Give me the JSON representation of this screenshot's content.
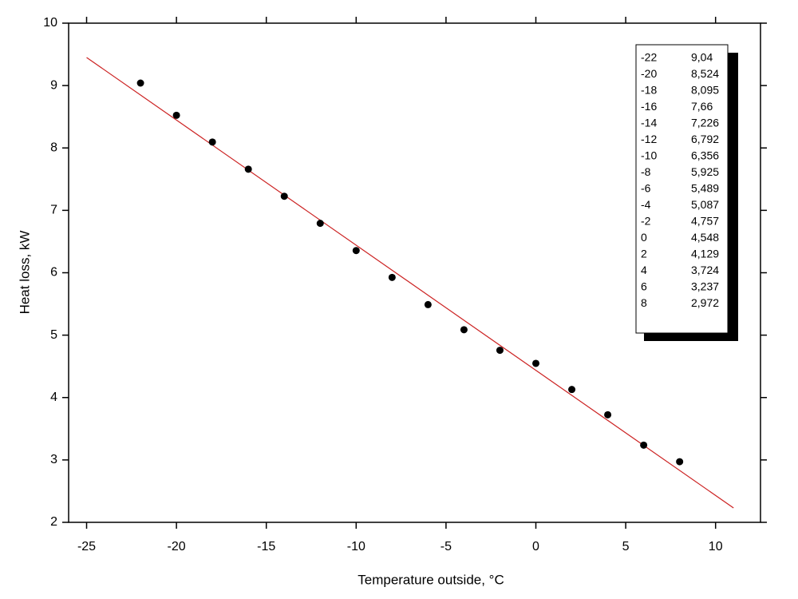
{
  "chart_data": {
    "type": "scatter",
    "xlabel": "Temperature outside, °C",
    "ylabel": "Heat loss, kW",
    "x": [
      -22,
      -20,
      -18,
      -16,
      -14,
      -12,
      -10,
      -8,
      -6,
      -4,
      -2,
      0,
      2,
      4,
      6,
      8
    ],
    "y": [
      9.04,
      8.524,
      8.095,
      7.66,
      7.226,
      6.792,
      6.356,
      5.925,
      5.489,
      5.087,
      4.757,
      4.548,
      4.129,
      3.724,
      3.237,
      2.972
    ],
    "value_labels": [
      "9,04",
      "8,524",
      "8,095",
      "7,66",
      "7,226",
      "6,792",
      "6,356",
      "5,925",
      "5,489",
      "5,087",
      "4,757",
      "4,548",
      "4,129",
      "3,724",
      "3,237",
      "2,972"
    ],
    "color": "#000000",
    "fit": {
      "x": [
        -25,
        11
      ],
      "y": [
        9.45,
        2.23
      ],
      "color": "#cc2222"
    },
    "xlim": [
      -26,
      12.5
    ],
    "ylim": [
      2,
      10
    ],
    "xticks": [
      -25,
      -20,
      -15,
      -10,
      -5,
      0,
      5,
      10
    ],
    "yticks": [
      2,
      3,
      4,
      5,
      6,
      7,
      8,
      9,
      10
    ]
  }
}
